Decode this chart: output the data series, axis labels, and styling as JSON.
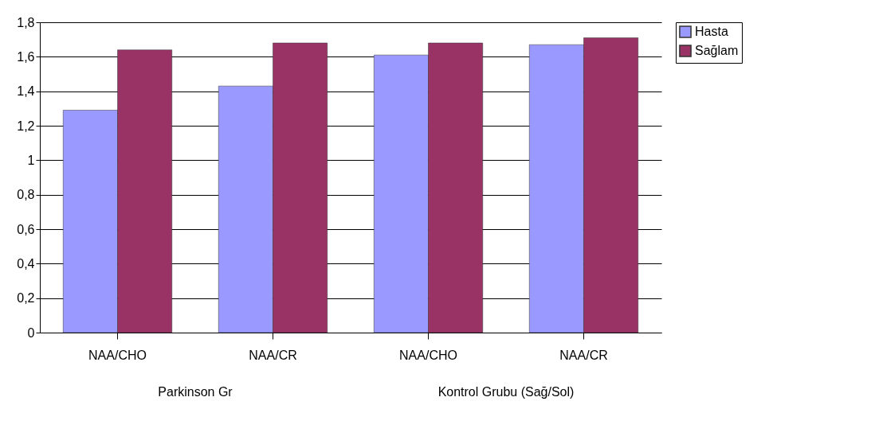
{
  "chart_data": {
    "type": "bar",
    "categories": [
      "NAA/CHO",
      "NAA/CR",
      "NAA/CHO",
      "NAA/CR"
    ],
    "series": [
      {
        "name": "Hasta",
        "color": "#9999ff",
        "values": [
          1.29,
          1.43,
          1.61,
          1.67
        ]
      },
      {
        "name": "Sağlam",
        "color": "#993366",
        "values": [
          1.64,
          1.68,
          1.68,
          1.71
        ]
      }
    ],
    "annotations": [
      "Parkinson Gr",
      "Kontrol Grubu (Sağ/Sol)"
    ],
    "ylim": [
      0,
      1.8
    ],
    "yticks": [
      0,
      {
        "value": 0.2,
        "label": "0,2"
      },
      {
        "value": 0.4,
        "label": "0,4"
      },
      {
        "value": 0.6,
        "label": "0,6"
      },
      {
        "value": 0.8,
        "label": "0,8"
      },
      1,
      {
        "value": 1.2,
        "label": "1,2"
      },
      {
        "value": 1.4,
        "label": "1,4"
      },
      {
        "value": 1.6,
        "label": "1,6"
      },
      {
        "value": 1.8,
        "label": "1,8"
      }
    ],
    "grid": "y",
    "legend": "top right"
  }
}
